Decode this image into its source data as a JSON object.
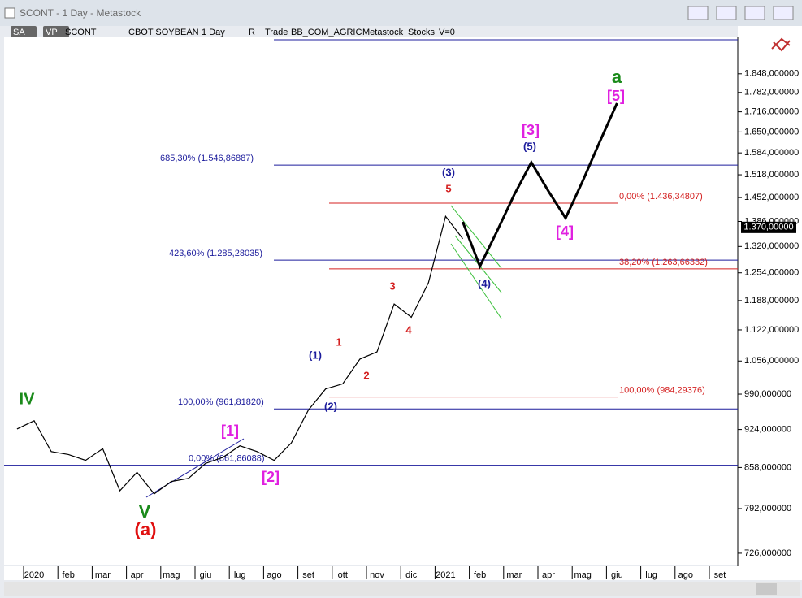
{
  "window": {
    "title": "SCONT - 1 Day - Metastock"
  },
  "toolbar": {
    "items": [
      "SA",
      "VP",
      "SCONT",
      "CBOT SOYBEAN",
      "1 Day",
      "R",
      "Trade",
      "BB_COM_AGRIC",
      "Metastock",
      "Stocks",
      "V=0"
    ]
  },
  "chart_data": {
    "type": "line",
    "log": true,
    "categories": [
      null,
      "2020",
      null,
      "feb",
      null,
      "mar",
      null,
      "apr",
      null,
      "mag",
      null,
      "giu",
      null,
      "lug",
      null,
      "ago",
      null,
      "set",
      null,
      "ott",
      null,
      "nov",
      null,
      "dic",
      null,
      "2021",
      null,
      "feb",
      null,
      "mar",
      null,
      "apr",
      null,
      "mag",
      null,
      "giu",
      null,
      "lug",
      null,
      "ago",
      null,
      "set"
    ],
    "series": [
      {
        "name": "SCONT",
        "color": "#000000",
        "values": [
          925,
          940,
          885,
          880,
          870,
          890,
          820,
          850,
          815,
          835,
          840,
          865,
          875,
          895,
          885,
          870,
          900,
          960,
          1000,
          1010,
          1060,
          1075,
          1180,
          1150,
          1230,
          1400,
          1340,
          null,
          null,
          null,
          null,
          null,
          null,
          null,
          null,
          null,
          null,
          null,
          null,
          null,
          null,
          null
        ]
      },
      {
        "name": "Projection",
        "color": "#000000",
        "values": [
          null,
          null,
          null,
          null,
          null,
          null,
          null,
          null,
          null,
          null,
          null,
          null,
          null,
          null,
          null,
          null,
          null,
          null,
          null,
          null,
          null,
          null,
          null,
          null,
          null,
          null,
          1385,
          1270,
          1360,
          1460,
          1555,
          1470,
          1395,
          1500,
          1620,
          1745,
          null,
          null,
          null,
          null,
          null,
          null
        ]
      }
    ],
    "ylim": [
      710,
      1987
    ],
    "yticks": [
      {
        "value": 726,
        "label": "726,000000"
      },
      {
        "value": 792,
        "label": "792,000000"
      },
      {
        "value": 858,
        "label": "858,000000"
      },
      {
        "value": 924,
        "label": "924,000000"
      },
      {
        "value": 990,
        "label": "990,000000"
      },
      {
        "value": 1056,
        "label": "1.056,000000"
      },
      {
        "value": 1122,
        "label": "1.122,000000"
      },
      {
        "value": 1188,
        "label": "1.188,000000"
      },
      {
        "value": 1254,
        "label": "1.254,000000"
      },
      {
        "value": 1320,
        "label": "1.320,000000"
      },
      {
        "value": 1386,
        "label": "1.386,000000"
      },
      {
        "value": 1452,
        "label": "1.452,000000"
      },
      {
        "value": 1518,
        "label": "1.518,000000"
      },
      {
        "value": 1584,
        "label": "1.584,000000"
      },
      {
        "value": 1650,
        "label": "1.650,000000"
      },
      {
        "value": 1716,
        "label": "1.716,000000"
      },
      {
        "value": 1782,
        "label": "1.782,000000"
      },
      {
        "value": 1848,
        "label": "1.848,000000"
      }
    ],
    "last": {
      "value": 1370,
      "label": "1.370,00000"
    },
    "levels": [
      {
        "label": "685,30% (1.546,86887)",
        "value": 1546.86887,
        "color": "#1c1c9c"
      },
      {
        "label": "423,60% (1.285,28035)",
        "value": 1285.28035,
        "color": "#1c1c9c"
      },
      {
        "label": "100,00% (961,81820)",
        "value": 961.8182,
        "color": "#1c1c9c"
      },
      {
        "label": "0,00% (861,86088)",
        "value": 861.86088,
        "color": "#1c1c9c"
      },
      {
        "label": "0,00% (1.436,34807)",
        "value": 1436.34807,
        "color": "#d42020"
      },
      {
        "label": "38,20% (1.263,66332)",
        "value": 1263.66332,
        "color": "#d42020"
      },
      {
        "label": "100,00% (984,29376)",
        "value": 984.29376,
        "color": "#d42020"
      }
    ],
    "wave_labels": [
      {
        "text": "IV",
        "color": "#1a8a1a"
      },
      {
        "text": "V",
        "color": "#1a8a1a"
      },
      {
        "text": "(a)",
        "color": "#e01010"
      },
      {
        "text": "[1]",
        "color": "#e020e0"
      },
      {
        "text": "[2]",
        "color": "#e020e0"
      },
      {
        "text": "(1)",
        "color": "#1c1c9c"
      },
      {
        "text": "(2)",
        "color": "#1c1c9c"
      },
      {
        "text": "1",
        "color": "#d42020"
      },
      {
        "text": "2",
        "color": "#d42020"
      },
      {
        "text": "3",
        "color": "#d42020"
      },
      {
        "text": "4",
        "color": "#d42020"
      },
      {
        "text": "5",
        "color": "#d42020"
      },
      {
        "text": "(3)",
        "color": "#1c1c9c"
      },
      {
        "text": "(4)",
        "color": "#1c1c9c"
      },
      {
        "text": "(5)",
        "color": "#1c1c9c"
      },
      {
        "text": "[3]",
        "color": "#e020e0"
      },
      {
        "text": "[4]",
        "color": "#e020e0"
      },
      {
        "text": "[5]",
        "color": "#e020e0"
      },
      {
        "text": "a",
        "color": "#1a8a1a"
      }
    ]
  }
}
